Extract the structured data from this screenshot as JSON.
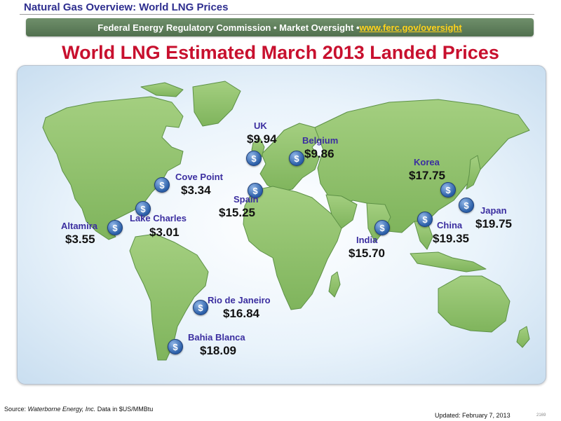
{
  "header": {
    "section_title": "Natural Gas Overview: World LNG Prices",
    "banner_text": "Federal Energy Regulatory Commission • Market Oversight • ",
    "banner_link": "www.ferc.gov/oversight"
  },
  "main_title": "World LNG Estimated March 2013 Landed Prices",
  "map": {
    "style": "world map, green continents on light blue ocean",
    "colors": {
      "land": "#8dc06a",
      "land_edge": "#5d9146",
      "ocean": "#d9eaf7",
      "coin": "#2b5fa8",
      "label": "#3b2ea0",
      "title": "#c8102e"
    },
    "locations": [
      {
        "name": "UK",
        "price": "$9.94"
      },
      {
        "name": "Belgium",
        "price": "$9.86"
      },
      {
        "name": "Cove Point",
        "price": "$3.34"
      },
      {
        "name": "Spain",
        "price": "$15.25"
      },
      {
        "name": "Lake Charles",
        "price": "$3.01"
      },
      {
        "name": "Altamira",
        "price": "$3.55"
      },
      {
        "name": "Korea",
        "price": "$17.75"
      },
      {
        "name": "Japan",
        "price": "$19.75"
      },
      {
        "name": "China",
        "price": "$19.35"
      },
      {
        "name": "India",
        "price": "$15.70"
      },
      {
        "name": "Rio de Janeiro",
        "price": "$16.84"
      },
      {
        "name": "Bahia Blanca",
        "price": "$18.09"
      }
    ],
    "marker_icon": "dollar-coin-icon"
  },
  "footer": {
    "source_label": "Source: ",
    "source_name": "Waterborne Energy, Inc.",
    "source_note": "  Data in $US/MMBtu",
    "updated": "Updated:  February 7, 2013",
    "slide_number": "2169"
  }
}
